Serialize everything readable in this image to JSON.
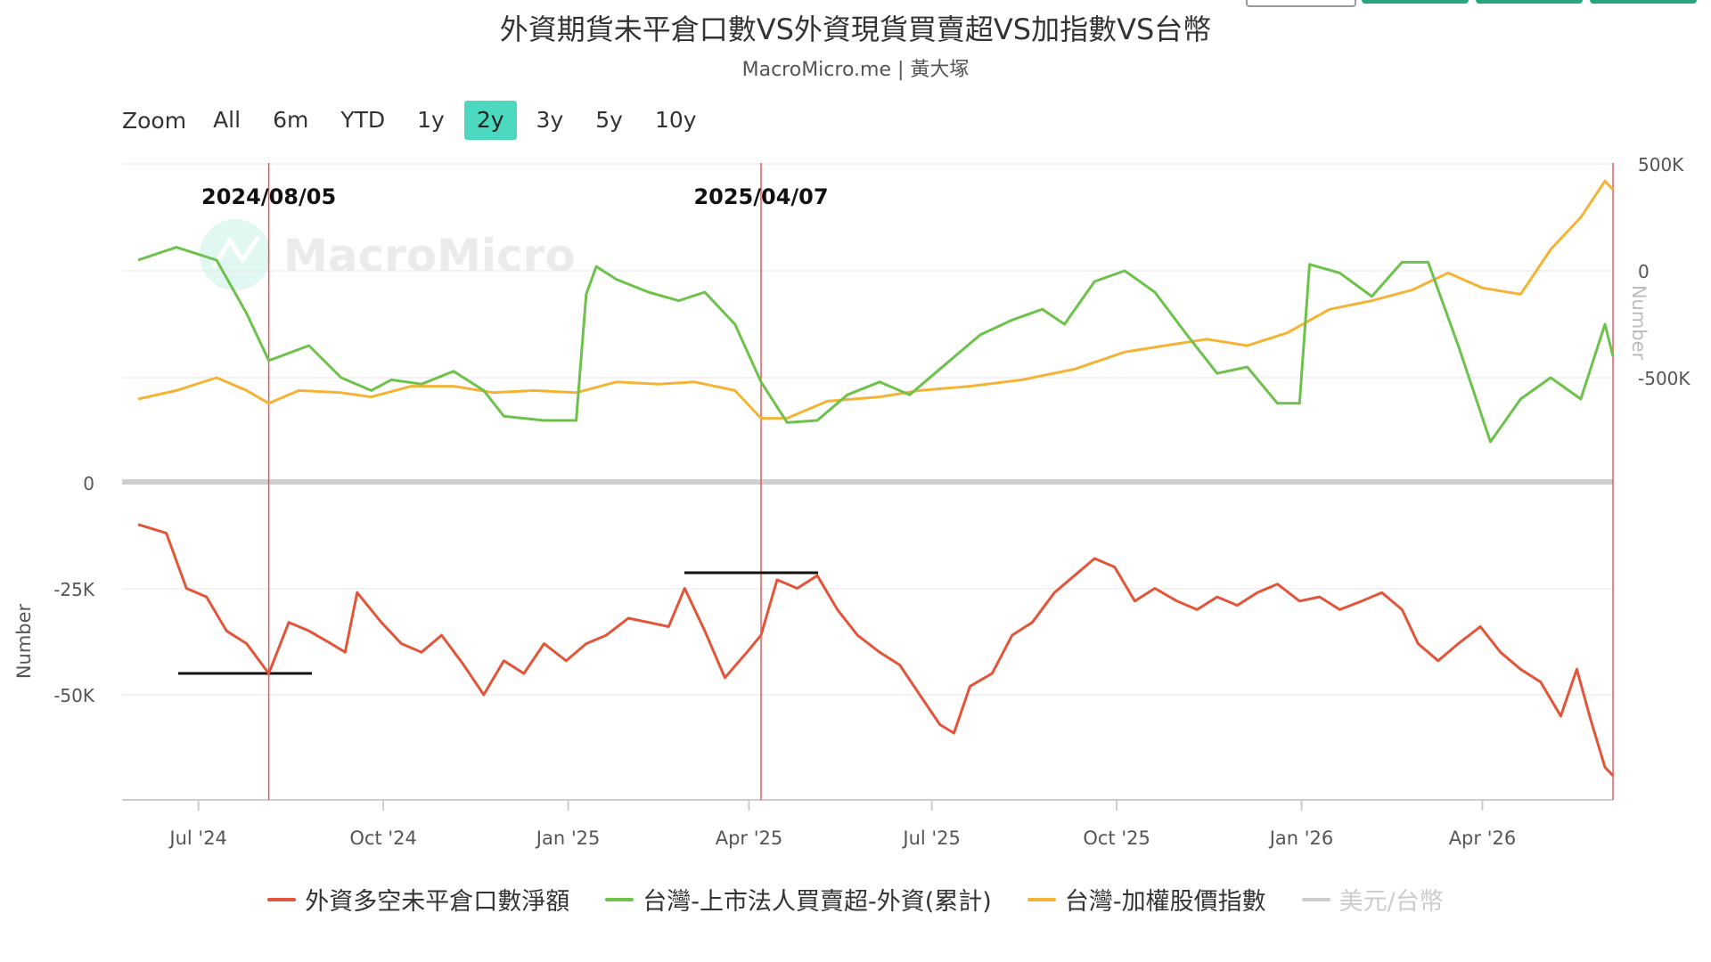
{
  "header": {
    "title": "外資期貨未平倉口數VS外資現貨買賣超VS加指數VS台幣",
    "subtitle": "MacroMicro.me | 黃大塚"
  },
  "zoom": {
    "label": "Zoom",
    "options": [
      "All",
      "6m",
      "YTD",
      "1y",
      "2y",
      "3y",
      "5y",
      "10y"
    ],
    "selected": "2y"
  },
  "watermark": "MacroMicro",
  "annotations": [
    "2024/08/05",
    "2025/04/07"
  ],
  "colors": {
    "futures": "#e25538",
    "foreign": "#6cc24a",
    "index": "#f5b336",
    "usdtwd": "#cccccc",
    "active_zoom": "#4dd8c0",
    "vline": "#e35a5a"
  },
  "chart_data": {
    "type": "line",
    "x_axis": {
      "ticks": [
        "Jul '24",
        "Oct '24",
        "Jan '25",
        "Apr '25",
        "Jul '25",
        "Oct '25",
        "Jan '26",
        "Apr '26"
      ]
    },
    "left_axis": {
      "label": "Number",
      "ticks": [
        "0",
        "-25K",
        "-50K"
      ]
    },
    "right_axis": {
      "label": "Number",
      "ticks": [
        "500K",
        "0",
        "-500K"
      ]
    },
    "series": [
      {
        "name": "外資多空未平倉口數淨額",
        "color": "#e25538",
        "points": [
          [
            "2024-06-01",
            -10000
          ],
          [
            "2024-06-15",
            -12000
          ],
          [
            "2024-06-25",
            -25000
          ],
          [
            "2024-07-05",
            -27000
          ],
          [
            "2024-07-15",
            -35000
          ],
          [
            "2024-07-25",
            -38000
          ],
          [
            "2024-08-05",
            -45000
          ],
          [
            "2024-08-15",
            -33000
          ],
          [
            "2024-08-25",
            -35000
          ],
          [
            "2024-09-05",
            -38000
          ],
          [
            "2024-09-12",
            -40000
          ],
          [
            "2024-09-18",
            -26000
          ],
          [
            "2024-09-30",
            -33000
          ],
          [
            "2024-10-10",
            -38000
          ],
          [
            "2024-10-20",
            -40000
          ],
          [
            "2024-10-30",
            -36000
          ],
          [
            "2024-11-10",
            -43000
          ],
          [
            "2024-11-20",
            -50000
          ],
          [
            "2024-11-30",
            -42000
          ],
          [
            "2024-12-10",
            -45000
          ],
          [
            "2024-12-20",
            -38000
          ],
          [
            "2024-12-31",
            -42000
          ],
          [
            "2025-01-10",
            -38000
          ],
          [
            "2025-01-20",
            -36000
          ],
          [
            "2025-01-31",
            -32000
          ],
          [
            "2025-02-10",
            -33000
          ],
          [
            "2025-02-20",
            -34000
          ],
          [
            "2025-02-28",
            -25000
          ],
          [
            "2025-03-10",
            -35000
          ],
          [
            "2025-03-20",
            -46000
          ],
          [
            "2025-03-31",
            -40000
          ],
          [
            "2025-04-07",
            -36000
          ],
          [
            "2025-04-15",
            -23000
          ],
          [
            "2025-04-25",
            -25000
          ],
          [
            "2025-05-05",
            -22000
          ],
          [
            "2025-05-15",
            -30000
          ],
          [
            "2025-05-25",
            -36000
          ],
          [
            "2025-06-05",
            -40000
          ],
          [
            "2025-06-15",
            -43000
          ],
          [
            "2025-06-25",
            -50000
          ],
          [
            "2025-07-05",
            -57000
          ],
          [
            "2025-07-12",
            -59000
          ],
          [
            "2025-07-20",
            -48000
          ],
          [
            "2025-07-31",
            -45000
          ],
          [
            "2025-08-10",
            -36000
          ],
          [
            "2025-08-20",
            -33000
          ],
          [
            "2025-08-31",
            -26000
          ],
          [
            "2025-09-10",
            -22000
          ],
          [
            "2025-09-20",
            -18000
          ],
          [
            "2025-09-30",
            -20000
          ],
          [
            "2025-10-10",
            -28000
          ],
          [
            "2025-10-20",
            -25000
          ],
          [
            "2025-10-31",
            -28000
          ],
          [
            "2025-11-10",
            -30000
          ],
          [
            "2025-11-20",
            -27000
          ],
          [
            "2025-11-30",
            -29000
          ],
          [
            "2025-12-10",
            -26000
          ],
          [
            "2025-12-20",
            -24000
          ],
          [
            "2025-12-31",
            -28000
          ],
          [
            "2026-01-10",
            -27000
          ],
          [
            "2026-01-20",
            -30000
          ],
          [
            "2026-01-31",
            -28000
          ],
          [
            "2026-02-10",
            -26000
          ],
          [
            "2026-02-20",
            -30000
          ],
          [
            "2026-02-28",
            -38000
          ],
          [
            "2026-03-10",
            -42000
          ],
          [
            "2026-03-20",
            -38000
          ],
          [
            "2026-03-31",
            -34000
          ],
          [
            "2026-04-10",
            -40000
          ],
          [
            "2026-04-20",
            -44000
          ],
          [
            "2026-04-30",
            -47000
          ],
          [
            "2026-05-10",
            -55000
          ],
          [
            "2026-05-18",
            -44000
          ],
          [
            "2026-05-25",
            -56000
          ],
          [
            "2026-06-01",
            -67000
          ],
          [
            "2026-06-05",
            -69000
          ]
        ]
      },
      {
        "name": "台灣-上市法人買賣超-外資(累計)",
        "color": "#6cc24a",
        "points": [
          [
            "2024-06-01",
            50000
          ],
          [
            "2024-06-20",
            110000
          ],
          [
            "2024-07-10",
            50000
          ],
          [
            "2024-07-25",
            -200000
          ],
          [
            "2024-08-05",
            -420000
          ],
          [
            "2024-08-25",
            -350000
          ],
          [
            "2024-09-10",
            -500000
          ],
          [
            "2024-09-25",
            -560000
          ],
          [
            "2024-10-05",
            -510000
          ],
          [
            "2024-10-20",
            -530000
          ],
          [
            "2024-11-05",
            -470000
          ],
          [
            "2024-11-20",
            -560000
          ],
          [
            "2024-11-30",
            -680000
          ],
          [
            "2024-12-20",
            -700000
          ],
          [
            "2025-01-05",
            -700000
          ],
          [
            "2025-01-10",
            -110000
          ],
          [
            "2025-01-15",
            20000
          ],
          [
            "2025-01-25",
            -40000
          ],
          [
            "2025-02-10",
            -100000
          ],
          [
            "2025-02-25",
            -140000
          ],
          [
            "2025-03-10",
            -100000
          ],
          [
            "2025-03-25",
            -250000
          ],
          [
            "2025-04-07",
            -520000
          ],
          [
            "2025-04-20",
            -710000
          ],
          [
            "2025-05-05",
            -700000
          ],
          [
            "2025-05-20",
            -580000
          ],
          [
            "2025-06-05",
            -520000
          ],
          [
            "2025-06-20",
            -580000
          ],
          [
            "2025-07-10",
            -420000
          ],
          [
            "2025-07-25",
            -300000
          ],
          [
            "2025-08-10",
            -230000
          ],
          [
            "2025-08-25",
            -180000
          ],
          [
            "2025-09-05",
            -250000
          ],
          [
            "2025-09-20",
            -50000
          ],
          [
            "2025-10-05",
            0
          ],
          [
            "2025-10-20",
            -100000
          ],
          [
            "2025-11-05",
            -300000
          ],
          [
            "2025-11-20",
            -480000
          ],
          [
            "2025-12-05",
            -450000
          ],
          [
            "2025-12-20",
            -620000
          ],
          [
            "2025-12-31",
            -620000
          ],
          [
            "2026-01-05",
            30000
          ],
          [
            "2026-01-20",
            -10000
          ],
          [
            "2026-02-05",
            -120000
          ],
          [
            "2026-02-20",
            40000
          ],
          [
            "2026-03-05",
            40000
          ],
          [
            "2026-03-20",
            -350000
          ],
          [
            "2026-04-05",
            -800000
          ],
          [
            "2026-04-20",
            -600000
          ],
          [
            "2026-05-05",
            -500000
          ],
          [
            "2026-05-20",
            -600000
          ],
          [
            "2026-06-01",
            -250000
          ],
          [
            "2026-06-05",
            -400000
          ]
        ]
      },
      {
        "name": "台灣-加權股價指數",
        "color": "#f5b336",
        "points": [
          [
            "2024-06-01",
            -600000
          ],
          [
            "2024-06-20",
            -560000
          ],
          [
            "2024-07-10",
            -500000
          ],
          [
            "2024-07-25",
            -560000
          ],
          [
            "2024-08-05",
            -620000
          ],
          [
            "2024-08-20",
            -560000
          ],
          [
            "2024-09-10",
            -570000
          ],
          [
            "2024-09-25",
            -590000
          ],
          [
            "2024-10-15",
            -540000
          ],
          [
            "2024-11-05",
            -540000
          ],
          [
            "2024-11-25",
            -570000
          ],
          [
            "2024-12-15",
            -560000
          ],
          [
            "2025-01-05",
            -570000
          ],
          [
            "2025-01-25",
            -520000
          ],
          [
            "2025-02-15",
            -530000
          ],
          [
            "2025-03-05",
            -520000
          ],
          [
            "2025-03-25",
            -560000
          ],
          [
            "2025-04-07",
            -690000
          ],
          [
            "2025-04-20",
            -690000
          ],
          [
            "2025-05-10",
            -610000
          ],
          [
            "2025-06-05",
            -590000
          ],
          [
            "2025-06-25",
            -560000
          ],
          [
            "2025-07-20",
            -540000
          ],
          [
            "2025-08-15",
            -510000
          ],
          [
            "2025-09-10",
            -460000
          ],
          [
            "2025-10-05",
            -380000
          ],
          [
            "2025-10-25",
            -350000
          ],
          [
            "2025-11-15",
            -320000
          ],
          [
            "2025-12-05",
            -350000
          ],
          [
            "2025-12-25",
            -290000
          ],
          [
            "2026-01-15",
            -180000
          ],
          [
            "2026-02-05",
            -140000
          ],
          [
            "2026-02-25",
            -90000
          ],
          [
            "2026-03-15",
            -10000
          ],
          [
            "2026-04-01",
            -80000
          ],
          [
            "2026-04-20",
            -110000
          ],
          [
            "2026-05-05",
            100000
          ],
          [
            "2026-05-20",
            250000
          ],
          [
            "2026-06-01",
            420000
          ],
          [
            "2026-06-05",
            380000
          ]
        ]
      },
      {
        "name": "美元/台幣",
        "color": "#cccccc",
        "points": []
      }
    ]
  }
}
